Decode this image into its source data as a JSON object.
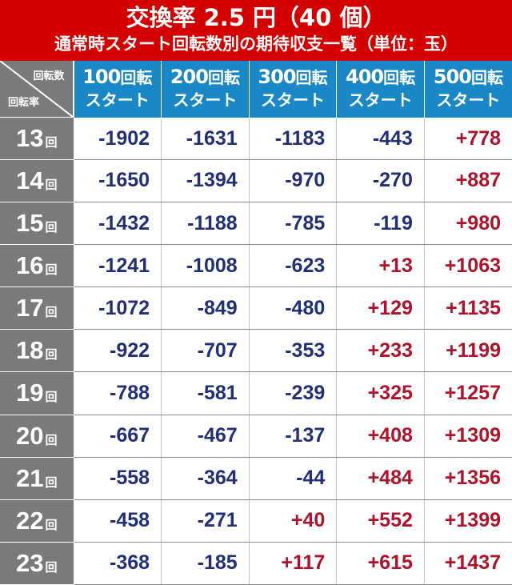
{
  "header": {
    "title": "交換率 2.5 円（40 個）",
    "subtitle": "通常時スタート回転数別の期待収支一覧（単位：玉）"
  },
  "corner": {
    "top_label": "回転数",
    "bottom_label": "回転率"
  },
  "columns": [
    {
      "number": "100",
      "unit": "回転",
      "sub": "スタート"
    },
    {
      "number": "200",
      "unit": "回転",
      "sub": "スタート"
    },
    {
      "number": "300",
      "unit": "回転",
      "sub": "スタート"
    },
    {
      "number": "400",
      "unit": "回転",
      "sub": "スタート"
    },
    {
      "number": "500",
      "unit": "回転",
      "sub": "スタート"
    }
  ],
  "row_unit": "回",
  "rows": [
    {
      "rate": "13",
      "values": [
        "-1902",
        "-1631",
        "-1183",
        "-443",
        "+778"
      ]
    },
    {
      "rate": "14",
      "values": [
        "-1650",
        "-1394",
        "-970",
        "-270",
        "+887"
      ]
    },
    {
      "rate": "15",
      "values": [
        "-1432",
        "-1188",
        "-785",
        "-119",
        "+980"
      ]
    },
    {
      "rate": "16",
      "values": [
        "-1241",
        "-1008",
        "-623",
        "+13",
        "+1063"
      ]
    },
    {
      "rate": "17",
      "values": [
        "-1072",
        "-849",
        "-480",
        "+129",
        "+1135"
      ]
    },
    {
      "rate": "18",
      "values": [
        "-922",
        "-707",
        "-353",
        "+233",
        "+1199"
      ]
    },
    {
      "rate": "19",
      "values": [
        "-788",
        "-581",
        "-239",
        "+325",
        "+1257"
      ]
    },
    {
      "rate": "20",
      "values": [
        "-667",
        "-467",
        "-137",
        "+408",
        "+1309"
      ]
    },
    {
      "rate": "21",
      "values": [
        "-558",
        "-364",
        "-44",
        "+484",
        "+1356"
      ]
    },
    {
      "rate": "22",
      "values": [
        "-458",
        "-271",
        "+40",
        "+552",
        "+1399"
      ]
    },
    {
      "rate": "23",
      "values": [
        "-368",
        "-185",
        "+117",
        "+615",
        "+1437"
      ]
    }
  ],
  "colors": {
    "header_bg": "#d40000",
    "column_header_bg": "#1a88c7",
    "row_header_bg": "#7a7a7a",
    "negative_text": "#1f2f78",
    "positive_text": "#b0122a"
  }
}
